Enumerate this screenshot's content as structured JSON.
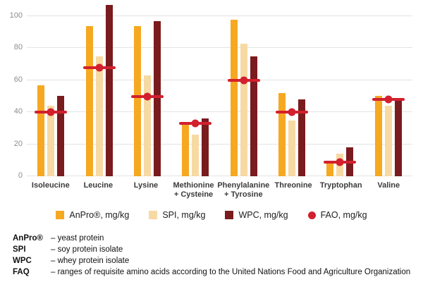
{
  "colors": {
    "anpro": "#F6A821",
    "spi": "#F7D9A3",
    "wpc": "#7A1B1E",
    "fao": "#D2202E",
    "grid": "#E3E3E3",
    "axis_text": "#8C8C8C",
    "category_text": "#3B3B3B"
  },
  "chart_data": {
    "type": "bar",
    "title": "",
    "xlabel": "",
    "ylabel": "",
    "categories": [
      "Isoleucine",
      "Leucine",
      "Lysine",
      "Methionine\n+ Cysteine",
      "Phenylalanine\n+ Tyrosine",
      "Threonine",
      "Tryptophan",
      "Valine"
    ],
    "series": [
      {
        "name": "AnPro®, mg/kg",
        "color_key": "anpro",
        "values": [
          57,
          94,
          94,
          32,
          98,
          52,
          9,
          50
        ]
      },
      {
        "name": "SPI, mg/kg",
        "color_key": "spi",
        "values": [
          44,
          75,
          63,
          26,
          83,
          35,
          14,
          44
        ]
      },
      {
        "name": "WPC, mg/kg",
        "color_key": "wpc",
        "values": [
          50,
          107,
          97,
          36,
          75,
          48,
          18,
          48
        ]
      }
    ],
    "fao_markers": {
      "name": "FAO, mg/kg",
      "color_key": "fao",
      "values": [
        40,
        68,
        50,
        33,
        60,
        40,
        9,
        48
      ]
    },
    "ylim": [
      0,
      110
    ],
    "yticks": [
      0,
      20,
      40,
      60,
      80,
      100
    ],
    "grid": true,
    "legend_position": "bottom"
  },
  "legend": [
    {
      "label": "AnPro®, mg/kg",
      "swatch": "anpro",
      "shape": "square"
    },
    {
      "label": "SPI, mg/kg",
      "swatch": "spi",
      "shape": "square"
    },
    {
      "label": "WPC, mg/kg",
      "swatch": "wpc",
      "shape": "square"
    },
    {
      "label": "FAO, mg/kg",
      "swatch": "fao",
      "shape": "circle"
    }
  ],
  "footnotes": [
    {
      "term": "AnPro®",
      "definition": "– yeast protein"
    },
    {
      "term": "SPI",
      "definition": "– soy protein isolate"
    },
    {
      "term": "WPC",
      "definition": "– whey protein isolate"
    },
    {
      "term": "FAQ",
      "definition": "– ranges of requisite amino acids according to the United Nations Food and Agriculture Organization"
    }
  ]
}
